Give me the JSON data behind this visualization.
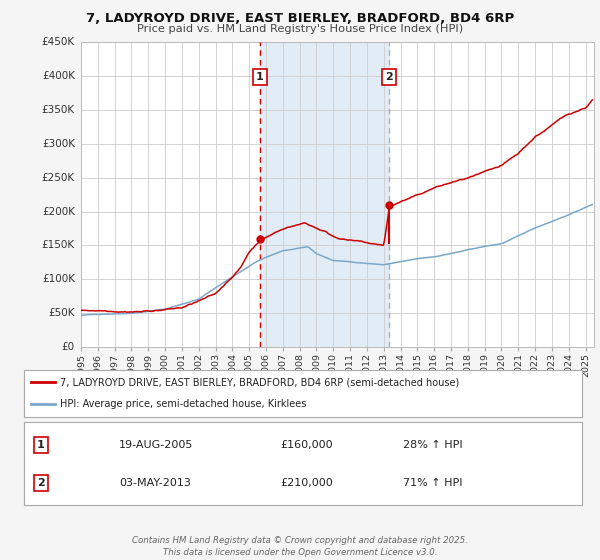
{
  "title1": "7, LADYROYD DRIVE, EAST BIERLEY, BRADFORD, BD4 6RP",
  "title2": "Price paid vs. HM Land Registry's House Price Index (HPI)",
  "xlim": [
    1995,
    2025.5
  ],
  "ylim": [
    0,
    450000
  ],
  "yticks": [
    0,
    50000,
    100000,
    150000,
    200000,
    250000,
    300000,
    350000,
    400000,
    450000
  ],
  "ytick_labels": [
    "£0",
    "£50K",
    "£100K",
    "£150K",
    "£200K",
    "£250K",
    "£300K",
    "£350K",
    "£400K",
    "£450K"
  ],
  "sale1_x": 2005.633,
  "sale1_y": 160000,
  "sale2_x": 2013.336,
  "sale2_y": 210000,
  "sale2_base_y": 154000,
  "legend_entries": [
    "7, LADYROYD DRIVE, EAST BIERLEY, BRADFORD, BD4 6RP (semi-detached house)",
    "HPI: Average price, semi-detached house, Kirklees"
  ],
  "legend_colors": [
    "#cc0000",
    "#7ba7c9"
  ],
  "table_rows": [
    [
      "1",
      "19-AUG-2005",
      "£160,000",
      "28% ↑ HPI"
    ],
    [
      "2",
      "03-MAY-2013",
      "£210,000",
      "71% ↑ HPI"
    ]
  ],
  "footer": "Contains HM Land Registry data © Crown copyright and database right 2025.\nThis data is licensed under the Open Government Licence v3.0.",
  "bg_color": "#f5f5f5",
  "plot_bg": "#ffffff",
  "grid_color": "#cccccc",
  "shade_color": "#dce9f5",
  "red_line_color": "#cc0000",
  "blue_line_color": "#7ba7c9",
  "dashed_red_color": "#cc0000",
  "dashed_blue_color": "#9ab5cc",
  "number_box_color": "#cc0000",
  "xticks": [
    1995,
    1996,
    1997,
    1998,
    1999,
    2000,
    2001,
    2002,
    2003,
    2004,
    2005,
    2006,
    2007,
    2008,
    2009,
    2010,
    2011,
    2012,
    2013,
    2014,
    2015,
    2016,
    2017,
    2018,
    2019,
    2020,
    2021,
    2022,
    2023,
    2024,
    2025
  ]
}
